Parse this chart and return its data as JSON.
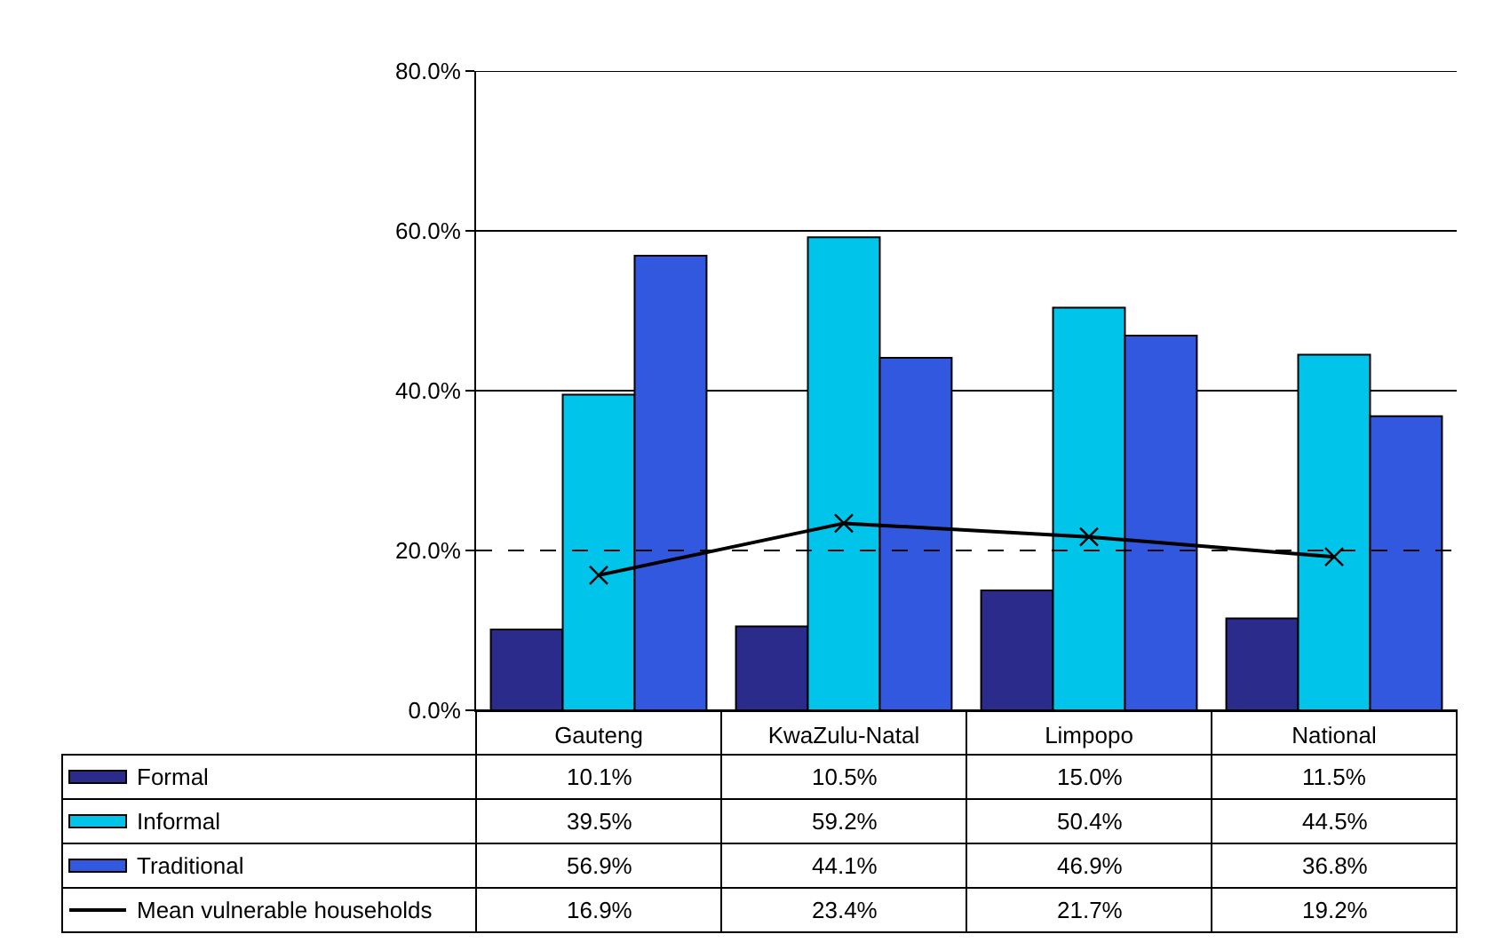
{
  "chart_data": {
    "type": "bar",
    "categories": [
      "Gauteng",
      "KwaZulu-Natal",
      "Limpopo",
      "National"
    ],
    "series": [
      {
        "name": "Formal",
        "color": "#2b2b8c",
        "values": [
          10.1,
          10.5,
          15.0,
          11.5
        ],
        "value_labels": [
          "10.1%",
          "10.5%",
          "15.0%",
          "11.5%"
        ]
      },
      {
        "name": "Informal",
        "color": "#00c4ea",
        "values": [
          39.5,
          59.2,
          50.4,
          44.5
        ],
        "value_labels": [
          "39.5%",
          "59.2%",
          "50.4%",
          "44.5%"
        ]
      },
      {
        "name": "Traditional",
        "color": "#3358e0",
        "values": [
          56.9,
          44.1,
          46.9,
          36.8
        ],
        "value_labels": [
          "56.9%",
          "44.1%",
          "46.9%",
          "36.8%"
        ]
      },
      {
        "name": "Mean vulnerable households",
        "type": "line",
        "color": "#000000",
        "marker": "cross",
        "values": [
          16.9,
          23.4,
          21.7,
          19.2
        ],
        "value_labels": [
          "16.9%",
          "23.4%",
          "21.7%",
          "19.2%"
        ]
      }
    ],
    "ylim": [
      0,
      80
    ],
    "yticks": [
      {
        "value": 0,
        "label": "0.0%"
      },
      {
        "value": 20,
        "label": "20.0%"
      },
      {
        "value": 40,
        "label": "40.0%"
      },
      {
        "value": 60,
        "label": "60.0%"
      },
      {
        "value": 80,
        "label": "80.0%"
      }
    ],
    "grid": "y",
    "ref_lines": [
      {
        "axis": "y",
        "value": 20,
        "line_style": "dashed",
        "color": "#000000"
      }
    ],
    "legend": "bottom"
  }
}
